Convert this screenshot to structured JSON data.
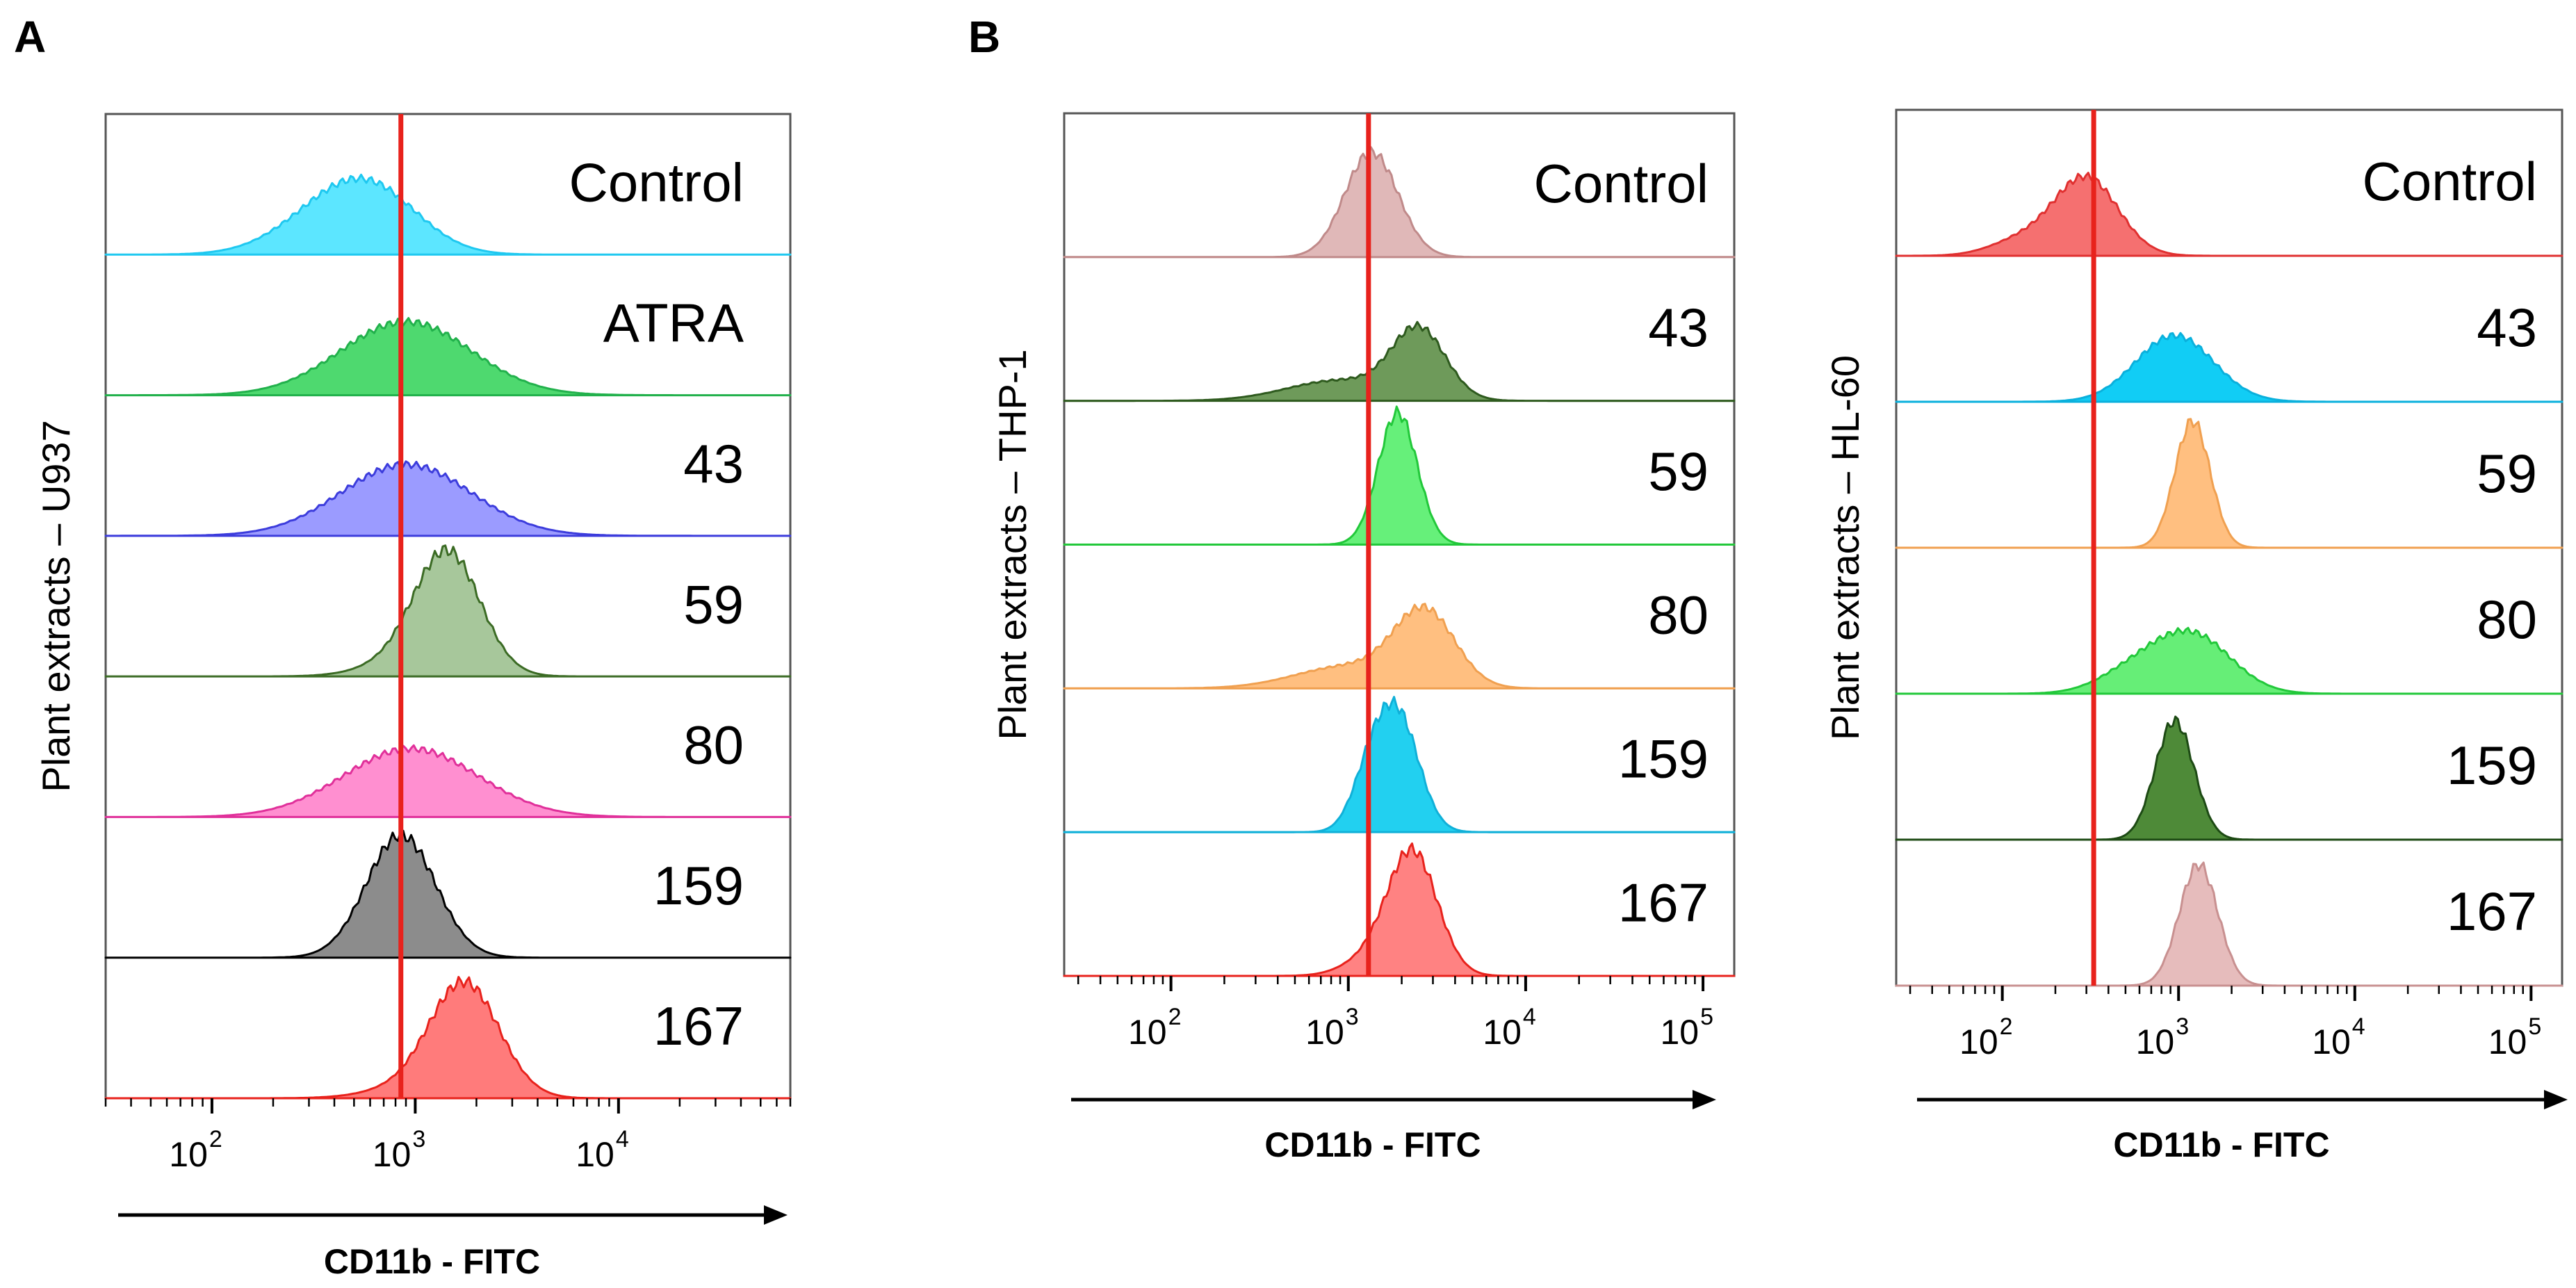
{
  "chart_data": [
    {
      "panel": "A",
      "type": "histogram-stack",
      "ylabel": "Plant extracts – U937",
      "xlabel": "CD11b - FITC",
      "x_scale": "log",
      "xlim": [
        30,
        70000
      ],
      "ticks": [
        {
          "base": "10",
          "exp": "2",
          "value": 100
        },
        {
          "base": "10",
          "exp": "3",
          "value": 1000
        },
        {
          "base": "10",
          "exp": "4",
          "value": 10000
        }
      ],
      "reference_line": 850,
      "reference_color": "#e8221c",
      "series": [
        {
          "label": "Control",
          "fill": "#5ce6ff",
          "stroke": "#1fc8f0",
          "components": [
            {
              "m": 430,
              "s": 0.26,
              "w": 0.7
            },
            {
              "m": 700,
              "s": 0.22,
              "w": 0.4
            }
          ],
          "height": 0.58
        },
        {
          "label": "ATRA",
          "fill": "#4ed96f",
          "stroke": "#22b14c",
          "components": [
            {
              "m": 900,
              "s": 0.32,
              "w": 1.0
            }
          ],
          "height": 0.56
        },
        {
          "label": "43",
          "fill": "#9b9bff",
          "stroke": "#3c3cdc",
          "components": [
            {
              "m": 900,
              "s": 0.32,
              "w": 1.0
            }
          ],
          "height": 0.54
        },
        {
          "label": "59",
          "fill": "#a7c79b",
          "stroke": "#3b6b24",
          "components": [
            {
              "m": 1450,
              "s": 0.16,
              "w": 1.0
            },
            {
              "m": 900,
              "s": 0.2,
              "w": 0.12
            }
          ],
          "height": 0.95
        },
        {
          "label": "80",
          "fill": "#ff8fd0",
          "stroke": "#e0309a",
          "components": [
            {
              "m": 950,
              "s": 0.33,
              "w": 1.0
            }
          ],
          "height": 0.52
        },
        {
          "label": "159",
          "fill": "#8c8c8c",
          "stroke": "#000000",
          "components": [
            {
              "m": 850,
              "s": 0.17,
              "w": 1.0
            }
          ],
          "height": 0.92
        },
        {
          "label": "167",
          "fill": "#ff7b7b",
          "stroke": "#e8221c",
          "components": [
            {
              "m": 1750,
              "s": 0.17,
              "w": 1.0
            },
            {
              "m": 900,
              "s": 0.2,
              "w": 0.08
            }
          ],
          "height": 0.88
        }
      ]
    },
    {
      "panel": "B",
      "type": "histogram-stack",
      "ylabel": "Plant extracts – THP-1",
      "xlabel": "CD11b - FITC",
      "x_scale": "log",
      "xlim": [
        25,
        150000
      ],
      "ticks": [
        {
          "base": "10",
          "exp": "2",
          "value": 100
        },
        {
          "base": "10",
          "exp": "3",
          "value": 1000
        },
        {
          "base": "10",
          "exp": "4",
          "value": 10000
        },
        {
          "base": "10",
          "exp": "5",
          "value": 100000
        }
      ],
      "reference_line": 1300,
      "reference_color": "#e8221c",
      "series": [
        {
          "label": "Control",
          "fill": "#e0b8b8",
          "stroke": "#c08a8a",
          "components": [
            {
              "m": 1350,
              "s": 0.15,
              "w": 1.0
            }
          ],
          "height": 0.78
        },
        {
          "label": "43",
          "fill": "#6e9a5a",
          "stroke": "#2e5a1e",
          "components": [
            {
              "m": 2500,
              "s": 0.15,
              "w": 1.0
            },
            {
              "m": 900,
              "s": 0.3,
              "w": 0.3
            }
          ],
          "height": 0.56
        },
        {
          "label": "59",
          "fill": "#66f07a",
          "stroke": "#22c83a",
          "components": [
            {
              "m": 1900,
              "s": 0.11,
              "w": 1.0
            }
          ],
          "height": 0.98
        },
        {
          "label": "80",
          "fill": "#ffbf80",
          "stroke": "#f0a050",
          "components": [
            {
              "m": 2700,
              "s": 0.17,
              "w": 1.0
            },
            {
              "m": 1000,
              "s": 0.3,
              "w": 0.3
            }
          ],
          "height": 0.6
        },
        {
          "label": "159",
          "fill": "#22d0f0",
          "stroke": "#10b0d8",
          "components": [
            {
              "m": 1900,
              "s": 0.12,
              "w": 1.0
            },
            {
              "m": 1300,
              "s": 0.1,
              "w": 0.4
            }
          ],
          "height": 0.96
        },
        {
          "label": "167",
          "fill": "#ff8282",
          "stroke": "#e8221c",
          "components": [
            {
              "m": 2300,
              "s": 0.14,
              "w": 1.0
            },
            {
              "m": 1300,
              "s": 0.15,
              "w": 0.12
            }
          ],
          "height": 0.94
        }
      ]
    },
    {
      "panel": "",
      "type": "histogram-stack",
      "ylabel": "Plant extracts – HL-60",
      "xlabel": "CD11b - FITC",
      "x_scale": "log",
      "xlim": [
        25,
        150000
      ],
      "ticks": [
        {
          "base": "10",
          "exp": "2",
          "value": 100
        },
        {
          "base": "10",
          "exp": "3",
          "value": 1000
        },
        {
          "base": "10",
          "exp": "4",
          "value": 10000
        },
        {
          "base": "10",
          "exp": "5",
          "value": 100000
        }
      ],
      "reference_line": 330,
      "reference_color": "#e8221c",
      "series": [
        {
          "label": "Control",
          "fill": "#f57070",
          "stroke": "#e03030",
          "components": [
            {
              "m": 300,
              "s": 0.18,
              "w": 1.0
            },
            {
              "m": 130,
              "s": 0.18,
              "w": 0.2
            }
          ],
          "height": 0.58
        },
        {
          "label": "43",
          "fill": "#11cdf5",
          "stroke": "#0ab0dc",
          "components": [
            {
              "m": 950,
              "s": 0.22,
              "w": 1.0
            }
          ],
          "height": 0.48
        },
        {
          "label": "59",
          "fill": "#ffbf80",
          "stroke": "#f0a050",
          "components": [
            {
              "m": 1200,
              "s": 0.1,
              "w": 1.0
            }
          ],
          "height": 0.9
        },
        {
          "label": "80",
          "fill": "#66ee77",
          "stroke": "#22c83a",
          "components": [
            {
              "m": 1200,
              "s": 0.22,
              "w": 1.0
            },
            {
              "m": 550,
              "s": 0.2,
              "w": 0.35
            }
          ],
          "height": 0.46
        },
        {
          "label": "159",
          "fill": "#4e8a38",
          "stroke": "#1d4a14",
          "components": [
            {
              "m": 950,
              "s": 0.11,
              "w": 1.0
            }
          ],
          "height": 0.86
        },
        {
          "label": "167",
          "fill": "#e6bcbc",
          "stroke": "#c89090",
          "components": [
            {
              "m": 1300,
              "s": 0.11,
              "w": 1.0
            }
          ],
          "height": 0.86
        }
      ]
    }
  ]
}
